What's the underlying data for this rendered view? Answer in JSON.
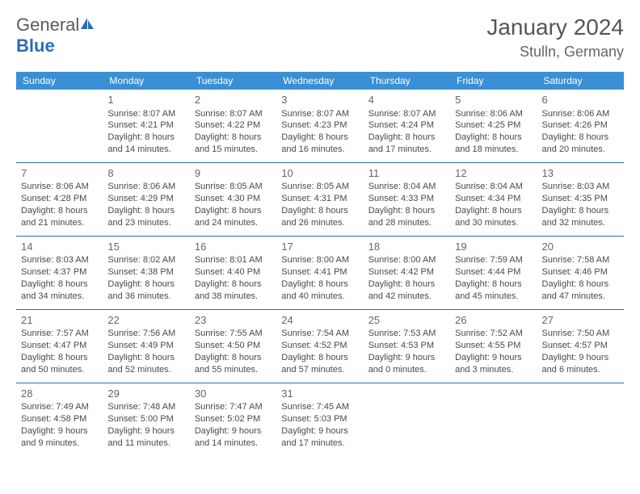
{
  "logo": {
    "text1": "General",
    "text2": "Blue",
    "icon_color": "#2a6db5"
  },
  "title": {
    "month": "January 2024",
    "location": "Stulln, Germany"
  },
  "colors": {
    "header_bg": "#3b8fd4",
    "header_text": "#ffffff",
    "row_border": "#2a6db5",
    "text": "#4a4a4a",
    "daynum": "#666666"
  },
  "weekdays": [
    "Sunday",
    "Monday",
    "Tuesday",
    "Wednesday",
    "Thursday",
    "Friday",
    "Saturday"
  ],
  "weeks": [
    [
      null,
      {
        "d": "1",
        "sr": "Sunrise: 8:07 AM",
        "ss": "Sunset: 4:21 PM",
        "dl1": "Daylight: 8 hours",
        "dl2": "and 14 minutes."
      },
      {
        "d": "2",
        "sr": "Sunrise: 8:07 AM",
        "ss": "Sunset: 4:22 PM",
        "dl1": "Daylight: 8 hours",
        "dl2": "and 15 minutes."
      },
      {
        "d": "3",
        "sr": "Sunrise: 8:07 AM",
        "ss": "Sunset: 4:23 PM",
        "dl1": "Daylight: 8 hours",
        "dl2": "and 16 minutes."
      },
      {
        "d": "4",
        "sr": "Sunrise: 8:07 AM",
        "ss": "Sunset: 4:24 PM",
        "dl1": "Daylight: 8 hours",
        "dl2": "and 17 minutes."
      },
      {
        "d": "5",
        "sr": "Sunrise: 8:06 AM",
        "ss": "Sunset: 4:25 PM",
        "dl1": "Daylight: 8 hours",
        "dl2": "and 18 minutes."
      },
      {
        "d": "6",
        "sr": "Sunrise: 8:06 AM",
        "ss": "Sunset: 4:26 PM",
        "dl1": "Daylight: 8 hours",
        "dl2": "and 20 minutes."
      }
    ],
    [
      {
        "d": "7",
        "sr": "Sunrise: 8:06 AM",
        "ss": "Sunset: 4:28 PM",
        "dl1": "Daylight: 8 hours",
        "dl2": "and 21 minutes."
      },
      {
        "d": "8",
        "sr": "Sunrise: 8:06 AM",
        "ss": "Sunset: 4:29 PM",
        "dl1": "Daylight: 8 hours",
        "dl2": "and 23 minutes."
      },
      {
        "d": "9",
        "sr": "Sunrise: 8:05 AM",
        "ss": "Sunset: 4:30 PM",
        "dl1": "Daylight: 8 hours",
        "dl2": "and 24 minutes."
      },
      {
        "d": "10",
        "sr": "Sunrise: 8:05 AM",
        "ss": "Sunset: 4:31 PM",
        "dl1": "Daylight: 8 hours",
        "dl2": "and 26 minutes."
      },
      {
        "d": "11",
        "sr": "Sunrise: 8:04 AM",
        "ss": "Sunset: 4:33 PM",
        "dl1": "Daylight: 8 hours",
        "dl2": "and 28 minutes."
      },
      {
        "d": "12",
        "sr": "Sunrise: 8:04 AM",
        "ss": "Sunset: 4:34 PM",
        "dl1": "Daylight: 8 hours",
        "dl2": "and 30 minutes."
      },
      {
        "d": "13",
        "sr": "Sunrise: 8:03 AM",
        "ss": "Sunset: 4:35 PM",
        "dl1": "Daylight: 8 hours",
        "dl2": "and 32 minutes."
      }
    ],
    [
      {
        "d": "14",
        "sr": "Sunrise: 8:03 AM",
        "ss": "Sunset: 4:37 PM",
        "dl1": "Daylight: 8 hours",
        "dl2": "and 34 minutes."
      },
      {
        "d": "15",
        "sr": "Sunrise: 8:02 AM",
        "ss": "Sunset: 4:38 PM",
        "dl1": "Daylight: 8 hours",
        "dl2": "and 36 minutes."
      },
      {
        "d": "16",
        "sr": "Sunrise: 8:01 AM",
        "ss": "Sunset: 4:40 PM",
        "dl1": "Daylight: 8 hours",
        "dl2": "and 38 minutes."
      },
      {
        "d": "17",
        "sr": "Sunrise: 8:00 AM",
        "ss": "Sunset: 4:41 PM",
        "dl1": "Daylight: 8 hours",
        "dl2": "and 40 minutes."
      },
      {
        "d": "18",
        "sr": "Sunrise: 8:00 AM",
        "ss": "Sunset: 4:42 PM",
        "dl1": "Daylight: 8 hours",
        "dl2": "and 42 minutes."
      },
      {
        "d": "19",
        "sr": "Sunrise: 7:59 AM",
        "ss": "Sunset: 4:44 PM",
        "dl1": "Daylight: 8 hours",
        "dl2": "and 45 minutes."
      },
      {
        "d": "20",
        "sr": "Sunrise: 7:58 AM",
        "ss": "Sunset: 4:46 PM",
        "dl1": "Daylight: 8 hours",
        "dl2": "and 47 minutes."
      }
    ],
    [
      {
        "d": "21",
        "sr": "Sunrise: 7:57 AM",
        "ss": "Sunset: 4:47 PM",
        "dl1": "Daylight: 8 hours",
        "dl2": "and 50 minutes."
      },
      {
        "d": "22",
        "sr": "Sunrise: 7:56 AM",
        "ss": "Sunset: 4:49 PM",
        "dl1": "Daylight: 8 hours",
        "dl2": "and 52 minutes."
      },
      {
        "d": "23",
        "sr": "Sunrise: 7:55 AM",
        "ss": "Sunset: 4:50 PM",
        "dl1": "Daylight: 8 hours",
        "dl2": "and 55 minutes."
      },
      {
        "d": "24",
        "sr": "Sunrise: 7:54 AM",
        "ss": "Sunset: 4:52 PM",
        "dl1": "Daylight: 8 hours",
        "dl2": "and 57 minutes."
      },
      {
        "d": "25",
        "sr": "Sunrise: 7:53 AM",
        "ss": "Sunset: 4:53 PM",
        "dl1": "Daylight: 9 hours",
        "dl2": "and 0 minutes."
      },
      {
        "d": "26",
        "sr": "Sunrise: 7:52 AM",
        "ss": "Sunset: 4:55 PM",
        "dl1": "Daylight: 9 hours",
        "dl2": "and 3 minutes."
      },
      {
        "d": "27",
        "sr": "Sunrise: 7:50 AM",
        "ss": "Sunset: 4:57 PM",
        "dl1": "Daylight: 9 hours",
        "dl2": "and 6 minutes."
      }
    ],
    [
      {
        "d": "28",
        "sr": "Sunrise: 7:49 AM",
        "ss": "Sunset: 4:58 PM",
        "dl1": "Daylight: 9 hours",
        "dl2": "and 9 minutes."
      },
      {
        "d": "29",
        "sr": "Sunrise: 7:48 AM",
        "ss": "Sunset: 5:00 PM",
        "dl1": "Daylight: 9 hours",
        "dl2": "and 11 minutes."
      },
      {
        "d": "30",
        "sr": "Sunrise: 7:47 AM",
        "ss": "Sunset: 5:02 PM",
        "dl1": "Daylight: 9 hours",
        "dl2": "and 14 minutes."
      },
      {
        "d": "31",
        "sr": "Sunrise: 7:45 AM",
        "ss": "Sunset: 5:03 PM",
        "dl1": "Daylight: 9 hours",
        "dl2": "and 17 minutes."
      },
      null,
      null,
      null
    ]
  ]
}
